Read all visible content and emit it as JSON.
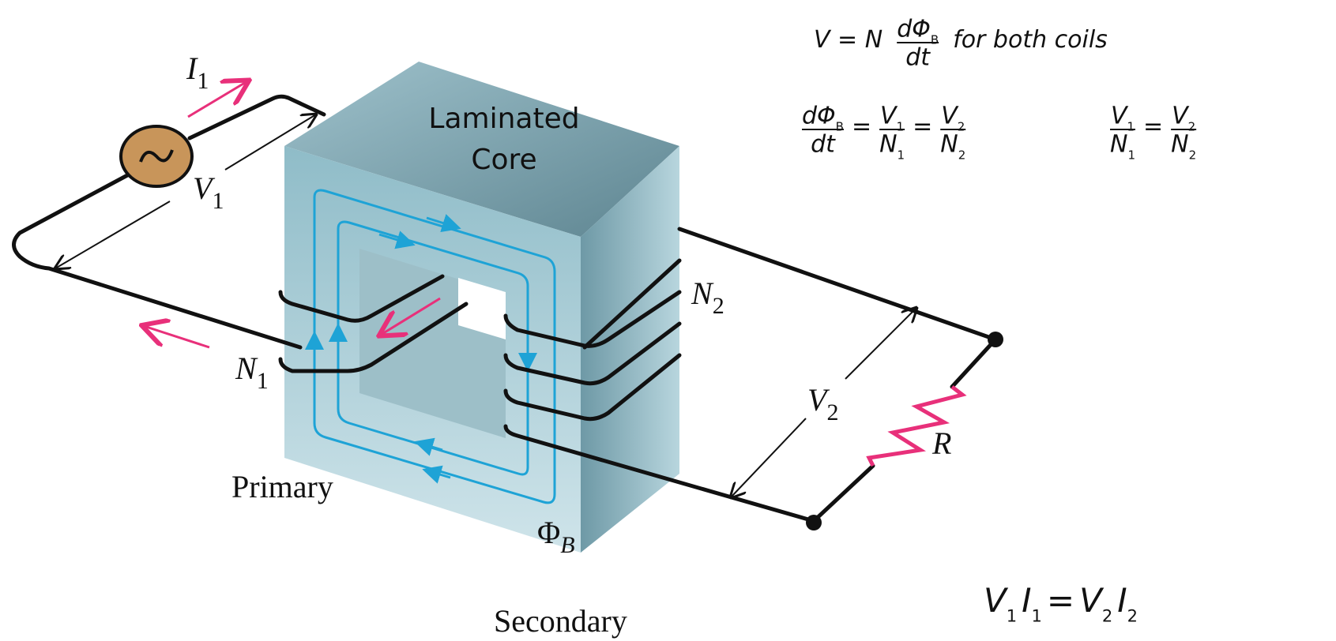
{
  "labels": {
    "core": [
      "Laminated",
      "Core"
    ],
    "current": {
      "text": "I",
      "sub": "1"
    },
    "primary_voltage": {
      "text": "V",
      "sub": "1"
    },
    "primary_turns": {
      "text": "N",
      "sub": "1"
    },
    "secondary_turns": {
      "text": "N",
      "sub": "2"
    },
    "secondary_voltage": {
      "text": "V",
      "sub": "2"
    },
    "resistor": {
      "text": "R"
    },
    "flux": {
      "text": "Φ",
      "sub": "B"
    },
    "primary": "Primary",
    "secondary": "Secondary"
  },
  "equations": [
    {
      "terms": [
        {
          "text": "V = N"
        },
        {
          "num": [
            {
              "text": "dΦ",
              "sub": "B"
            }
          ],
          "den": [
            {
              "text": "dt"
            }
          ]
        },
        {
          "text": "for both coils"
        }
      ]
    },
    {
      "terms": [
        {
          "num": [
            {
              "text": "dΦ",
              "sub": "B"
            }
          ],
          "den": [
            {
              "text": "dt"
            }
          ]
        },
        {
          "text": "="
        },
        {
          "num": [
            {
              "text": "V",
              "sub": "1"
            }
          ],
          "den": [
            {
              "text": "N",
              "sub": "1"
            }
          ]
        },
        {
          "text": "="
        },
        {
          "num": [
            {
              "text": "V",
              "sub": "2"
            }
          ],
          "den": [
            {
              "text": "N",
              "sub": "2"
            }
          ]
        }
      ]
    },
    {
      "terms": [
        {
          "num": [
            {
              "text": "V",
              "sub": "1"
            }
          ],
          "den": [
            {
              "text": "N",
              "sub": "1"
            }
          ]
        },
        {
          "text": "="
        },
        {
          "num": [
            {
              "text": "V",
              "sub": "2"
            }
          ],
          "den": [
            {
              "text": "N",
              "sub": "2"
            }
          ]
        }
      ]
    },
    {
      "terms": [
        {
          "text": "V",
          "sub": "1"
        },
        {
          "text": "I",
          "sub": "1"
        },
        {
          "text": "="
        },
        {
          "text": "V",
          "sub": "2"
        },
        {
          "text": "I",
          "sub": "2"
        }
      ]
    }
  ]
}
